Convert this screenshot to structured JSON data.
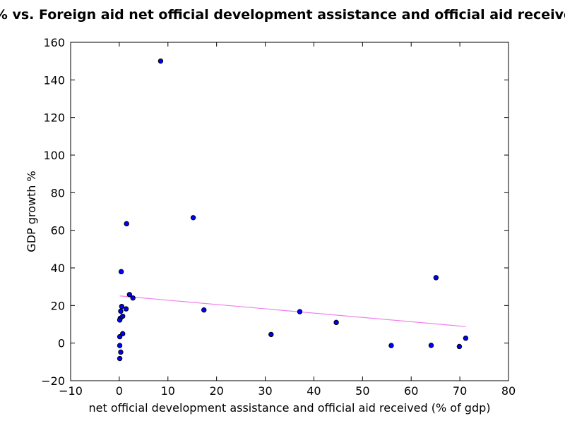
{
  "chart_data": {
    "type": "scatter",
    "title": "GDP growth % vs. Foreign aid net official development assistance and official aid received (% of gdp)",
    "xlabel": "net official development assistance and official aid received (% of gdp)",
    "ylabel": "GDP growth %",
    "xlim": [
      -10,
      80
    ],
    "ylim": [
      -20,
      160
    ],
    "xticks": [
      -10,
      0,
      10,
      20,
      30,
      40,
      50,
      60,
      70,
      80
    ],
    "yticks": [
      -20,
      0,
      20,
      40,
      60,
      80,
      100,
      120,
      140,
      160
    ],
    "grid": false,
    "colors": {
      "point_fill": "#0000ff",
      "point_edge": "#000000",
      "trend": "#ee82ee"
    },
    "points": [
      {
        "x": 8.5,
        "y": 150
      },
      {
        "x": 15.2,
        "y": 66.7
      },
      {
        "x": 1.5,
        "y": 63.5
      },
      {
        "x": 0.4,
        "y": 38
      },
      {
        "x": 2.1,
        "y": 25.8
      },
      {
        "x": 2.8,
        "y": 24
      },
      {
        "x": 0.5,
        "y": 19.5
      },
      {
        "x": 1.4,
        "y": 18.2
      },
      {
        "x": 0.3,
        "y": 17
      },
      {
        "x": 17.4,
        "y": 17.6
      },
      {
        "x": 0.7,
        "y": 14.3
      },
      {
        "x": 0.2,
        "y": 13.2
      },
      {
        "x": 0.1,
        "y": 12.3
      },
      {
        "x": 0.7,
        "y": 5
      },
      {
        "x": 0.1,
        "y": 3.4
      },
      {
        "x": 0.1,
        "y": -1.3
      },
      {
        "x": 0.3,
        "y": -4.8
      },
      {
        "x": 0.1,
        "y": -8.2
      },
      {
        "x": 31.2,
        "y": 4.6
      },
      {
        "x": 37.1,
        "y": 16.7
      },
      {
        "x": 44.6,
        "y": 11
      },
      {
        "x": 55.9,
        "y": -1.3
      },
      {
        "x": 64.1,
        "y": -1.2
      },
      {
        "x": 65.1,
        "y": 34.8
      },
      {
        "x": 69.9,
        "y": -1.8
      },
      {
        "x": 71.2,
        "y": 2.6
      }
    ],
    "trendline": {
      "x": [
        0.1,
        71.2
      ],
      "y": [
        25.1,
        8.8
      ]
    }
  }
}
